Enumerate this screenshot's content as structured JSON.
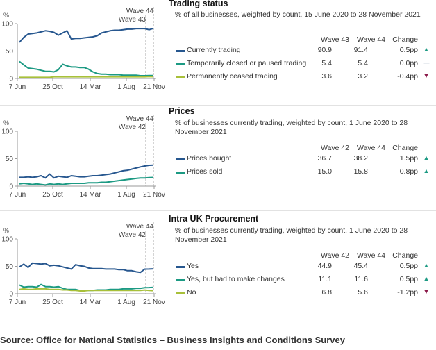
{
  "colors": {
    "navy": "#27578f",
    "teal": "#1c9a83",
    "olive": "#a8c03a",
    "up_arrow": "#1c9a83",
    "down_arrow": "#8b1a4a",
    "flat": "#1d3f70"
  },
  "source": "Source: Office for National Statistics – Business Insights and Conditions Survey",
  "chart_data": [
    {
      "type": "line",
      "title": "Trading status",
      "subtitle": "% of all businesses, weighted by count, 15 June 2020 to 28 November 2021",
      "ylabel": "%",
      "ylim": [
        0,
        100
      ],
      "yticks": [
        "0",
        "50",
        "100"
      ],
      "xtick_labels": [
        "7 Jun",
        "25 Oct",
        "14 Mar",
        "1 Aug",
        "21 Nov"
      ],
      "wave_labels": [
        "Wave 44",
        "Wave 43"
      ],
      "columns": [
        "Wave 43",
        "Wave 44",
        "Change"
      ],
      "series": [
        {
          "name": "Currently trading",
          "color": "navy",
          "values": [
            66,
            75,
            81,
            82,
            83,
            85,
            87,
            86,
            84,
            79,
            83,
            87,
            72,
            73,
            73,
            74,
            75,
            76,
            78,
            83,
            85,
            87,
            88,
            88,
            89,
            90,
            90,
            91,
            91,
            91,
            89,
            91.4
          ],
          "wave_a": "90.9",
          "wave_b": "91.4",
          "change": "0.5pp",
          "direction": "up"
        },
        {
          "name": "Temporarily closed or paused trading",
          "color": "teal",
          "values": [
            31,
            25,
            19,
            18,
            17,
            15,
            13,
            13,
            12,
            16,
            26,
            23,
            21,
            21,
            20,
            20,
            17,
            12,
            9,
            8,
            8,
            7,
            7,
            7,
            6,
            6,
            6,
            6,
            5,
            5,
            5.4,
            5.4
          ],
          "wave_a": "5.4",
          "wave_b": "5.4",
          "change": "0.0pp",
          "direction": "flat"
        },
        {
          "name": "Permanently ceased trading",
          "color": "olive",
          "values": [
            2,
            2,
            2,
            2,
            2,
            2,
            2,
            2,
            3,
            3,
            3,
            3,
            3,
            3,
            3,
            3,
            3,
            3,
            3,
            3,
            3,
            3,
            3,
            3,
            3,
            3,
            3,
            3,
            3,
            3,
            3.6,
            3.2
          ],
          "wave_a": "3.6",
          "wave_b": "3.2",
          "change": "-0.4pp",
          "direction": "down"
        }
      ]
    },
    {
      "type": "line",
      "title": "Prices",
      "subtitle": "% of businesses currently trading, weighted by count, 1 June 2020 to 28 November 2021",
      "ylabel": "%",
      "ylim": [
        0,
        100
      ],
      "yticks": [
        "0",
        "50",
        "100"
      ],
      "xtick_labels": [
        "7 Jun",
        "25 Oct",
        "14 Mar",
        "1 Aug",
        "21 Nov"
      ],
      "wave_labels": [
        "Wave 44",
        "Wave 42"
      ],
      "columns": [
        "Wave 42",
        "Wave 44",
        "Change"
      ],
      "series": [
        {
          "name": "Prices bought",
          "color": "navy",
          "values": [
            16,
            16,
            17,
            16,
            17,
            19,
            15,
            22,
            15,
            18,
            17,
            16,
            19,
            18,
            17,
            17,
            18,
            19,
            19,
            20,
            21,
            22,
            24,
            26,
            28,
            29,
            31,
            33,
            35,
            36.7,
            38,
            38.2
          ],
          "wave_a": "36.7",
          "wave_b": "38.2",
          "change": "1.5pp",
          "direction": "up"
        },
        {
          "name": "Prices sold",
          "color": "teal",
          "values": [
            4,
            5,
            4,
            3,
            4,
            3,
            2,
            4,
            3,
            4,
            3,
            4,
            5,
            5,
            5,
            5,
            6,
            6,
            6,
            7,
            7,
            8,
            9,
            10,
            11,
            12,
            13,
            14,
            15,
            15,
            15.5,
            15.8
          ],
          "wave_a": "15.0",
          "wave_b": "15.8",
          "change": "0.8pp",
          "direction": "up"
        }
      ]
    },
    {
      "type": "line",
      "title": "Intra UK Procurement",
      "subtitle": "% of businesses currently trading, weighted by count, 1 June 2020 to 28 November 2021",
      "ylabel": "%",
      "ylim": [
        0,
        100
      ],
      "yticks": [
        "0",
        "50",
        "100"
      ],
      "xtick_labels": [
        "7 Jun",
        "25 Oct",
        "14 Mar",
        "1 Aug",
        "21 Nov"
      ],
      "wave_labels": [
        "Wave 44",
        "Wave 42"
      ],
      "columns": [
        "Wave 42",
        "Wave 44",
        "Change"
      ],
      "series": [
        {
          "name": "Yes",
          "color": "navy",
          "values": [
            49,
            54,
            48,
            56,
            55,
            54,
            55,
            51,
            52,
            51,
            49,
            47,
            45,
            53,
            51,
            50,
            47,
            46,
            46,
            46,
            45,
            45,
            45,
            44,
            44,
            42,
            42,
            40,
            39,
            44.9,
            45,
            45.4
          ],
          "wave_a": "44.9",
          "wave_b": "45.4",
          "change": "0.5pp",
          "direction": "up"
        },
        {
          "name": "Yes, but had to make changes",
          "color": "teal",
          "values": [
            16,
            12,
            13,
            13,
            12,
            17,
            13,
            13,
            12,
            13,
            10,
            8,
            8,
            8,
            6,
            6,
            6,
            6,
            7,
            7,
            7,
            8,
            8,
            8,
            9,
            9,
            9,
            10,
            10,
            11.1,
            11.3,
            11.6
          ],
          "wave_a": "11.1",
          "wave_b": "11.6",
          "change": "0.5pp",
          "direction": "up"
        },
        {
          "name": "No",
          "color": "olive",
          "values": [
            8,
            9,
            8,
            8,
            9,
            9,
            9,
            8,
            8,
            8,
            7,
            7,
            6,
            6,
            5,
            5,
            6,
            6,
            6,
            6,
            6,
            6,
            6,
            6,
            6,
            6,
            6,
            6,
            6,
            6.8,
            6,
            5.6
          ],
          "wave_a": "6.8",
          "wave_b": "5.6",
          "change": "-1.2pp",
          "direction": "down"
        }
      ]
    }
  ]
}
